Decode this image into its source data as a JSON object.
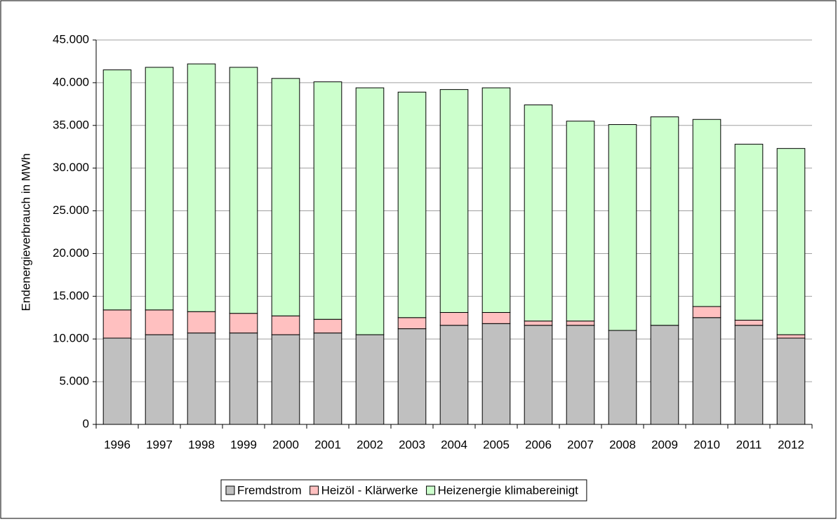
{
  "chart_data": {
    "type": "stacked_bar",
    "y_label": "Endenergieverbrauch in MWh",
    "categories": [
      "1996",
      "1997",
      "1998",
      "1999",
      "2000",
      "2001",
      "2002",
      "2003",
      "2004",
      "2005",
      "2006",
      "2007",
      "2008",
      "2009",
      "2010",
      "2011",
      "2012"
    ],
    "series": [
      {
        "name": "Fremdstrom",
        "color": "#c0c0c0",
        "values": [
          10100,
          10500,
          10700,
          10700,
          10500,
          10700,
          10500,
          11200,
          11600,
          11800,
          11600,
          11600,
          11000,
          11600,
          12500,
          11600,
          10100
        ]
      },
      {
        "name": "Heizöl - Klärwerke",
        "color": "#ffc0c0",
        "values": [
          3300,
          2900,
          2500,
          2300,
          2200,
          1600,
          0,
          1300,
          1500,
          1300,
          500,
          500,
          0,
          0,
          1300,
          600,
          400
        ]
      },
      {
        "name": "Heizenergie klimabereinigt",
        "color": "#ccffcc",
        "values": [
          28100,
          28400,
          29000,
          28800,
          27800,
          27800,
          28900,
          26400,
          26100,
          26300,
          25300,
          23400,
          24100,
          24400,
          21900,
          20600,
          21800
        ]
      }
    ],
    "ylim": [
      0,
      45000
    ],
    "yticks": [
      0,
      {
        "value": 5000,
        "label": "5.000"
      },
      {
        "value": 10000,
        "label": "10.000"
      },
      {
        "value": 15000,
        "label": "15.000"
      },
      {
        "value": 20000,
        "label": "20.000"
      },
      {
        "value": 25000,
        "label": "25.000"
      },
      {
        "value": 30000,
        "label": "30.000"
      },
      {
        "value": 35000,
        "label": "35.000"
      },
      {
        "value": 40000,
        "label": "40.000"
      },
      {
        "value": 45000,
        "label": "45.000"
      }
    ],
    "grid": true,
    "legend": "bottom"
  }
}
